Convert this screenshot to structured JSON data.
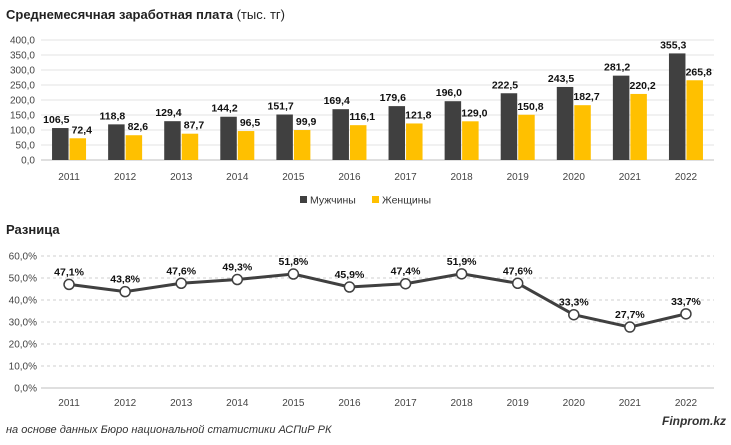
{
  "source": "на основе данных Бюро национальной статистики АСПиР РК",
  "brand": "Finprom.kz",
  "chart_data": [
    {
      "type": "bar",
      "title_main": "Среднемесячная заработная плата",
      "title_unit": "(тыс. тг)",
      "categories": [
        "2011",
        "2012",
        "2013",
        "2014",
        "2015",
        "2016",
        "2017",
        "2018",
        "2019",
        "2020",
        "2021",
        "2022"
      ],
      "series": [
        {
          "name": "Мужчины",
          "color": "#404040",
          "values": [
            106.5,
            118.8,
            129.4,
            144.2,
            151.7,
            169.4,
            179.6,
            196.0,
            222.5,
            243.5,
            281.2,
            355.3
          ],
          "labels": [
            "106,5",
            "118,8",
            "129,4",
            "144,2",
            "151,7",
            "169,4",
            "179,6",
            "196,0",
            "222,5",
            "243,5",
            "281,2",
            "355,3"
          ]
        },
        {
          "name": "Женщины",
          "color": "#FFC000",
          "values": [
            72.4,
            82.6,
            87.7,
            96.5,
            99.9,
            116.1,
            121.8,
            129.0,
            150.8,
            182.7,
            220.2,
            265.8
          ],
          "labels": [
            "72,4",
            "82,6",
            "87,7",
            "96,5",
            "99,9",
            "116,1",
            "121,8",
            "129,0",
            "150,8",
            "182,7",
            "220,2",
            "265,8"
          ]
        }
      ],
      "ylim": [
        0,
        400
      ],
      "yticks": [
        "0,0",
        "50,0",
        "100,0",
        "150,0",
        "200,0",
        "250,0",
        "300,0",
        "350,0",
        "400,0"
      ],
      "legend": "bottom",
      "grid": true
    },
    {
      "type": "line",
      "title": "Разница",
      "categories": [
        "2011",
        "2012",
        "2013",
        "2014",
        "2015",
        "2016",
        "2017",
        "2018",
        "2019",
        "2020",
        "2021",
        "2022"
      ],
      "values": [
        47.1,
        43.8,
        47.6,
        49.3,
        51.8,
        45.9,
        47.4,
        51.9,
        47.6,
        33.3,
        27.7,
        33.7
      ],
      "labels": [
        "47,1%",
        "43,8%",
        "47,6%",
        "49,3%",
        "51,8%",
        "45,9%",
        "47,4%",
        "51,9%",
        "47,6%",
        "33,3%",
        "27,7%",
        "33,7%"
      ],
      "ylim": [
        0,
        60
      ],
      "yticks": [
        "0,0%",
        "10,0%",
        "20,0%",
        "30,0%",
        "40,0%",
        "50,0%",
        "60,0%"
      ],
      "line_color": "#404040",
      "grid": true
    }
  ]
}
